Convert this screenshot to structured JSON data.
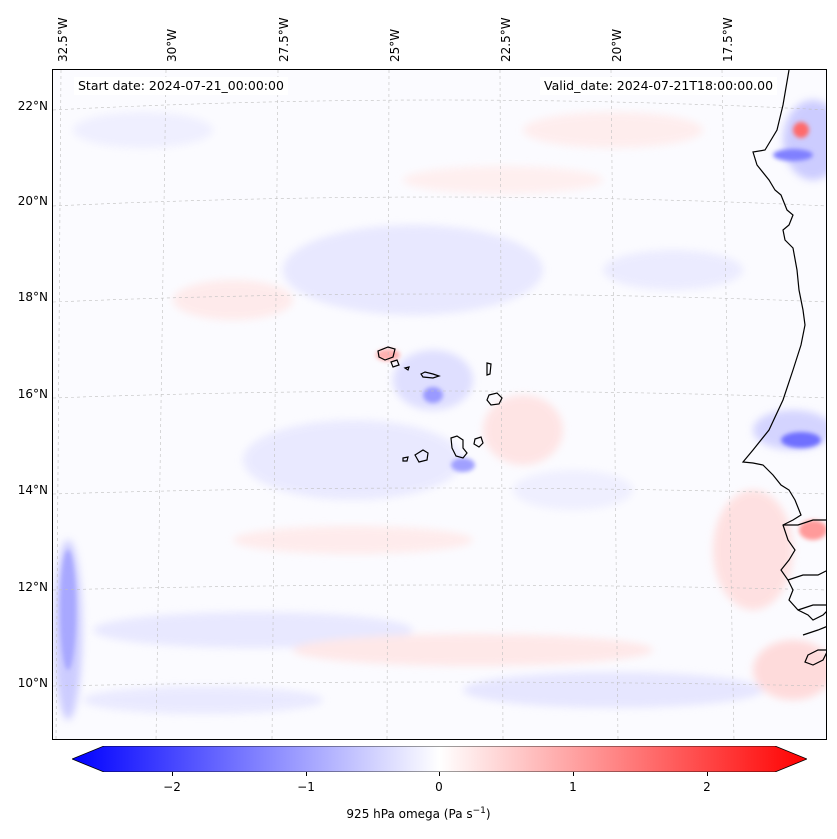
{
  "map": {
    "start_date": "Start date: 2024-07-21_00:00:00",
    "valid_date": "Valid_date: 2024-07-21T18:00:00.00",
    "lon_labels": [
      "32.5°W",
      "30°W",
      "27.5°W",
      "25°W",
      "22.5°W",
      "20°W",
      "17.5°W"
    ],
    "lat_labels": [
      "22°N",
      "20°N",
      "18°N",
      "16°N",
      "14°N",
      "12°N",
      "10°N"
    ],
    "variable": "925 hPa omega",
    "coastline_color": "#000000",
    "gridline_color": "#bfbfbf"
  },
  "colorbar": {
    "ticks": [
      "−2",
      "−1",
      "0",
      "1",
      "2"
    ],
    "label_prefix": "925 hPa omega (Pa s",
    "label_exp": "−1",
    "label_suffix": ")",
    "min_color": "#0000ff",
    "mid_color": "#ffffff",
    "max_color": "#ff0000",
    "range": [
      -2.5,
      2.5
    ]
  }
}
